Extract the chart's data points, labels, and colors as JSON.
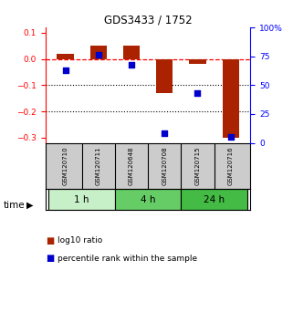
{
  "title": "GDS3433 / 1752",
  "samples": [
    "GSM120710",
    "GSM120711",
    "GSM120648",
    "GSM120708",
    "GSM120715",
    "GSM120716"
  ],
  "log10_ratio": [
    0.021,
    0.052,
    0.052,
    -0.13,
    -0.02,
    -0.3
  ],
  "percentile_rank": [
    63,
    76,
    68,
    8,
    43,
    5
  ],
  "time_groups": [
    {
      "label": "1 h",
      "color": "#c8f0c8"
    },
    {
      "label": "4 h",
      "color": "#66cc66"
    },
    {
      "label": "24 h",
      "color": "#44bb44"
    }
  ],
  "bar_color": "#aa2200",
  "dot_color": "#0000cc",
  "ylim_left": [
    -0.32,
    0.12
  ],
  "ylim_right": [
    0,
    100
  ],
  "yticks_left": [
    0.1,
    0.0,
    -0.1,
    -0.2,
    -0.3
  ],
  "yticks_right": [
    100,
    75,
    50,
    25,
    0
  ],
  "dotted_lines": [
    -0.1,
    -0.2
  ],
  "background_color": "#ffffff",
  "label_log10": "log10 ratio",
  "label_pct": "percentile rank within the sample",
  "time_label": "time",
  "sample_bg": "#cccccc",
  "bar_width": 0.5
}
